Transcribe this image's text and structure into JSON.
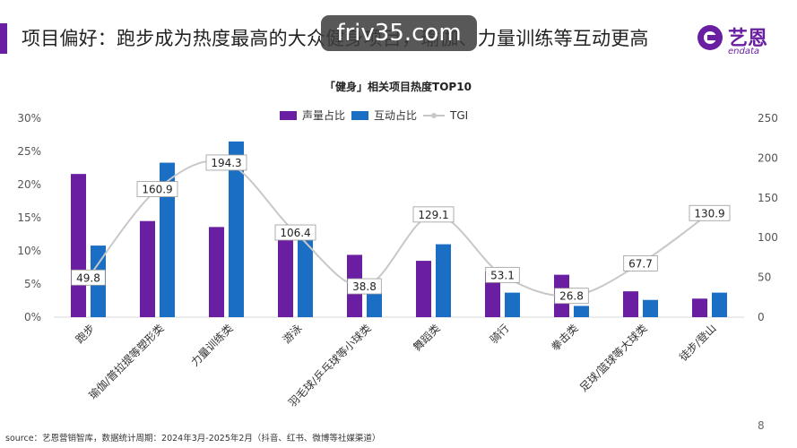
{
  "header": {
    "headline": "项目偏好：跑步成为热度最高的大众健身项目，瑜伽、力量训练等互动更高",
    "watermark": "friv35.com",
    "logo_cn": "艺恩",
    "logo_en": "endata"
  },
  "chart_data": {
    "type": "bar",
    "title": "「健身」相关项目热度TOP10",
    "categories": [
      "跑步",
      "瑜伽/普拉提等塑形类",
      "力量训练类",
      "游泳",
      "羽毛球/乒乓球等小球类",
      "舞蹈类",
      "骑行",
      "拳击类",
      "足球/篮球等大球类",
      "徒步/登山"
    ],
    "series": [
      {
        "name": "声量占比",
        "type": "bar",
        "axis": "left",
        "color": "#6a1fa3",
        "values": [
          21.6,
          14.5,
          13.6,
          11.7,
          9.4,
          8.5,
          6.9,
          6.4,
          3.9,
          2.8
        ]
      },
      {
        "name": "互动占比",
        "type": "bar",
        "axis": "left",
        "color": "#1a6fc4",
        "values": [
          10.8,
          23.3,
          26.5,
          12.5,
          3.6,
          11.0,
          3.7,
          1.7,
          2.6,
          3.7
        ]
      },
      {
        "name": "TGI",
        "type": "line",
        "axis": "right",
        "color": "#c8c8c8",
        "values": [
          49.8,
          160.9,
          194.3,
          106.4,
          38.8,
          129.1,
          53.1,
          26.8,
          67.7,
          130.9
        ],
        "labels": [
          "49.8",
          "160.9",
          "194.3",
          "106.4",
          "38.8",
          "129.1",
          "53.1",
          "26.8",
          "67.7",
          "130.9"
        ]
      }
    ],
    "y_left": {
      "min": 0,
      "max": 30,
      "ticks": [
        "0%",
        "5%",
        "10%",
        "15%",
        "20%",
        "25%",
        "30%"
      ]
    },
    "y_right": {
      "min": 0,
      "max": 250,
      "ticks": [
        "0",
        "50",
        "100",
        "150",
        "200",
        "250"
      ]
    },
    "legend": {
      "position": "top-center",
      "items": [
        "声量占比",
        "互动占比",
        "TGI"
      ]
    }
  },
  "footer": {
    "source": "source：艺恩营销智库，数据统计周期：2024年3月-2025年2月（抖音、红书、微博等社媒渠道）",
    "page_number": "8"
  }
}
